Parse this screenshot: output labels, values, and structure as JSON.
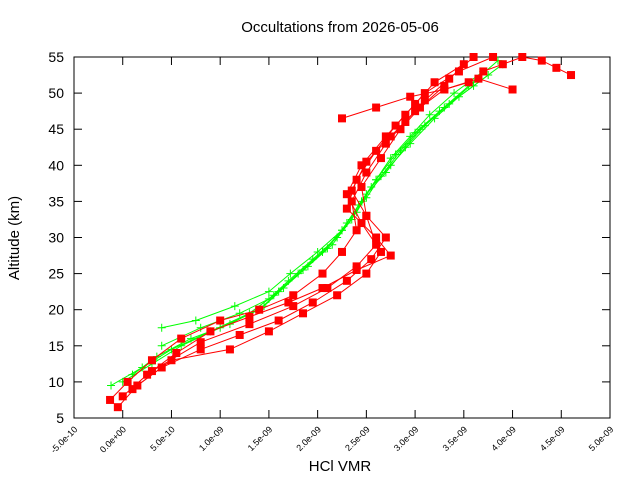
{
  "chart_data": {
    "type": "line",
    "title": "Occultations from 2026-05-06",
    "xlabel": "HCl VMR",
    "ylabel": "Altitude (km)",
    "xlim": [
      -5e-10,
      5e-09
    ],
    "ylim": [
      5,
      55
    ],
    "x_tick_values": [
      -5e-10,
      0,
      5e-10,
      1e-09,
      1.5e-09,
      2e-09,
      2.5e-09,
      3e-09,
      3.5e-09,
      4e-09,
      4.5e-09,
      5e-09
    ],
    "x_tick_labels": [
      "-5.0e-10",
      "0.0e+00",
      "5.0e-10",
      "1.0e-09",
      "1.5e-09",
      "2.0e-09",
      "2.5e-09",
      "3.0e-09",
      "3.5e-09",
      "4.0e-09",
      "4.5e-09",
      "5.0e-09"
    ],
    "y_tick_values": [
      5,
      10,
      15,
      20,
      25,
      30,
      35,
      40,
      45,
      50,
      55
    ],
    "y_tick_labels": [
      "5",
      "10",
      "15",
      "20",
      "25",
      "30",
      "35",
      "40",
      "45",
      "50",
      "55"
    ],
    "grid": false,
    "legend": "none",
    "series": [
      {
        "color": "#00ff00",
        "marker": "plus",
        "lines": [
          {
            "x": [
              -1.2e-10,
              2e-10,
              5e-10,
              9e-10,
              1.3e-09,
              1.55e-09,
              1.8e-09,
              2.05e-09,
              2.25e-09,
              2.45e-09,
              2.6e-09,
              2.75e-09,
              2.95e-09,
              3.15e-09,
              3.4e-09,
              3.7e-09
            ],
            "y": [
              9.5,
              12,
              14.5,
              17,
              19.5,
              22,
              25,
              28,
              31,
              35,
              38,
              41,
              44,
              47,
              50,
              53
            ]
          },
          {
            "x": [
              0.0,
              3e-10,
              6e-10,
              1e-09,
              1.4e-09,
              1.6e-09,
              1.85e-09,
              2.1e-09,
              2.3e-09,
              2.5e-09,
              2.65e-09,
              2.85e-09,
              3.05e-09,
              3.3e-09,
              3.6e-09,
              3.9e-09
            ],
            "y": [
              10,
              12.5,
              15,
              17.5,
              20,
              22.5,
              25.5,
              28.5,
              32,
              35.5,
              38.5,
              42,
              45,
              48,
              51,
              54
            ]
          },
          {
            "x": [
              1e-10,
              3.5e-10,
              7e-10,
              1.1e-09,
              1.45e-09,
              1.65e-09,
              1.9e-09,
              2.15e-09,
              2.35e-09,
              2.5e-09,
              2.7e-09,
              2.9e-09,
              3.1e-09,
              3.35e-09,
              3.65e-09
            ],
            "y": [
              11,
              13.5,
              16,
              18,
              20.5,
              23,
              26,
              29,
              32.5,
              36,
              39,
              42.5,
              45.5,
              48.5,
              52
            ]
          },
          {
            "x": [
              4e-10,
              8e-10,
              1.2e-09,
              1.5e-09,
              1.7e-09,
              1.95e-09,
              2.2e-09,
              2.4e-09,
              2.55e-09,
              2.75e-09,
              2.95e-09,
              3.2e-09,
              3.45e-09,
              3.75e-09
            ],
            "y": [
              15,
              17.5,
              19.5,
              21.5,
              24,
              27,
              30,
              33.5,
              37,
              40,
              43,
              46.5,
              49.5,
              52.5
            ]
          },
          {
            "x": [
              4e-10,
              7.5e-10,
              1.15e-09,
              1.5e-09,
              1.72e-09,
              2e-09,
              2.25e-09,
              2.42e-09,
              2.6e-09,
              2.8e-09,
              3e-09,
              3.25e-09,
              3.55e-09,
              3.85e-09
            ],
            "y": [
              17.5,
              18.5,
              20.5,
              22.5,
              25,
              28,
              31,
              34.5,
              38,
              41.5,
              44.5,
              47.5,
              51,
              54.5
            ]
          }
        ]
      },
      {
        "color": "#ff0000",
        "marker": "square",
        "lines": [
          {
            "x": [
              -1.3e-10,
              5e-11,
              3e-10,
              6e-10,
              1e-09,
              1.4e-09,
              1.75e-09,
              2.05e-09,
              2.25e-09,
              2.4e-09,
              2.35e-09,
              2.5e-09,
              2.7e-09,
              2.9e-09,
              3.1e-09,
              3.35e-09,
              3.6e-09
            ],
            "y": [
              7.5,
              10,
              13,
              16,
              18.5,
              20,
              22,
              25,
              28,
              31,
              35,
              39,
              43,
              46,
              49,
              52,
              55
            ]
          },
          {
            "x": [
              -5e-11,
              1.5e-10,
              4e-10,
              8e-10,
              1.2e-09,
              1.6e-09,
              1.95e-09,
              2.3e-09,
              2.55e-09,
              2.7e-09,
              2.5e-09,
              2.45e-09,
              2.65e-09,
              2.85e-09,
              3.05e-09,
              3.3e-09
            ],
            "y": [
              6.5,
              9.5,
              12,
              14.5,
              16.5,
              18.5,
              21,
              24,
              27,
              30,
              33,
              37,
              41,
              45,
              48,
              51
            ]
          },
          {
            "x": [
              0.0,
              2.5e-10,
              5.5e-10,
              9e-10,
              1.3e-09,
              1.7e-09,
              2.05e-09,
              2.4e-09,
              2.75e-09,
              2.6e-09,
              2.3e-09,
              2.4e-09,
              2.6e-09,
              2.8e-09,
              3e-09,
              3.2e-09,
              3.5e-09
            ],
            "y": [
              8,
              11,
              14,
              17,
              19,
              21,
              23,
              25.5,
              27.5,
              30,
              34,
              38,
              42,
              45.5,
              48.5,
              51.5,
              54
            ]
          },
          {
            "x": [
              1e-10,
              5e-10,
              1.1e-09,
              1.5e-09,
              1.85e-09,
              2.2e-09,
              2.5e-09,
              2.65e-09,
              2.45e-09,
              2.3e-09,
              2.45e-09,
              2.7e-09,
              2.9e-09,
              3.1e-09,
              3.45e-09,
              3.8e-09
            ],
            "y": [
              9,
              13,
              14.5,
              17,
              19.5,
              22,
              25,
              28,
              32,
              36,
              40,
              44,
              47,
              50,
              53,
              55
            ]
          },
          {
            "x": [
              3e-10,
              8e-10,
              1.3e-09,
              1.75e-09,
              2.1e-09,
              2.4e-09,
              2.6e-09,
              2.5e-09,
              2.35e-09,
              2.5e-09,
              2.75e-09,
              3e-09,
              3.3e-09,
              3.65e-09,
              4e-09
            ],
            "y": [
              11.5,
              15.5,
              18,
              20.5,
              23,
              26,
              29,
              33,
              36.5,
              40.5,
              44,
              47.5,
              50.5,
              52,
              50.5
            ]
          },
          {
            "x": [
              3.7e-09,
              3.9e-09,
              4.1e-09,
              4.3e-09,
              4.45e-09,
              4.6e-09
            ],
            "y": [
              53,
              54,
              55,
              54.5,
              53.5,
              52.5
            ]
          },
          {
            "x": [
              2.25e-09,
              2.6e-09,
              2.95e-09,
              3.3e-09,
              3.55e-09
            ],
            "y": [
              46.5,
              48,
              49.5,
              50.5,
              51.5
            ]
          }
        ]
      }
    ]
  }
}
